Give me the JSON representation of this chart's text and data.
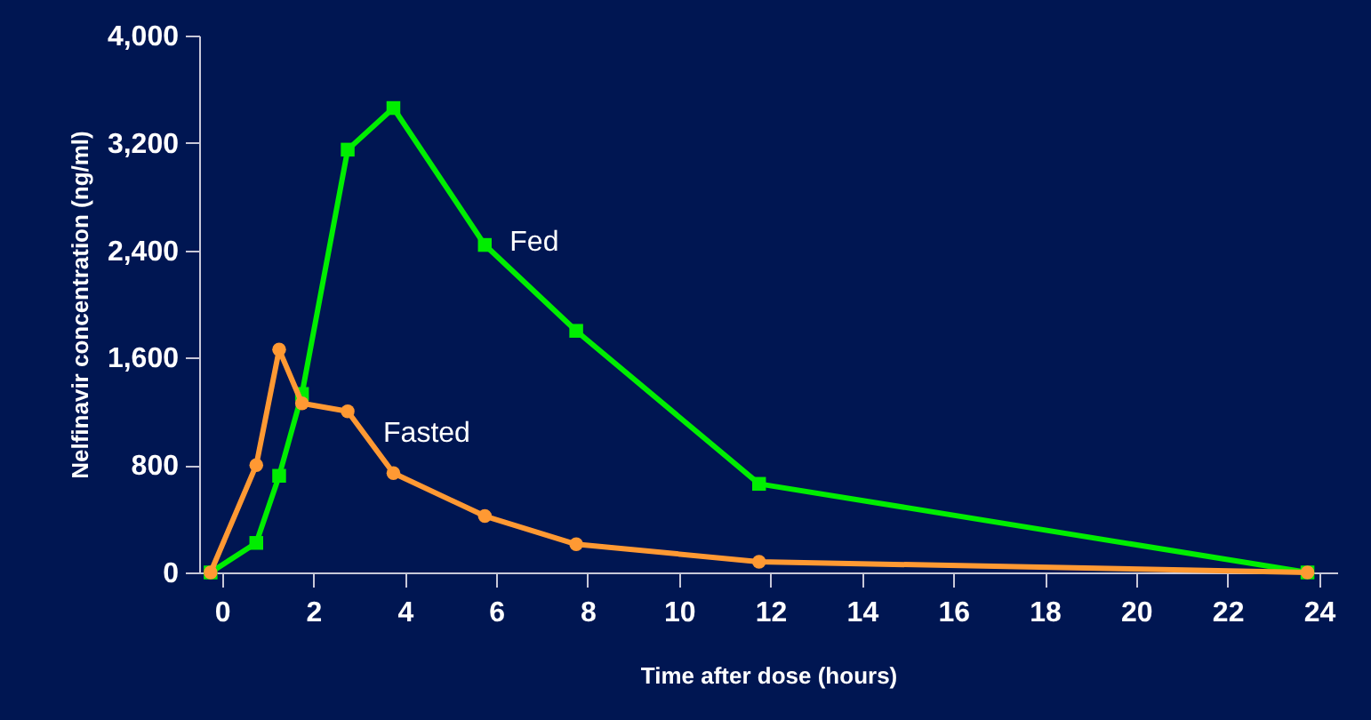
{
  "chart_data": {
    "type": "line",
    "xlabel": "Time after dose (hours)",
    "ylabel": "Nelfinavir concentration (ng/ml)",
    "xlim": [
      -0.5,
      24.4
    ],
    "xticks": [
      0,
      2,
      4,
      6,
      8,
      10,
      12,
      14,
      16,
      18,
      20,
      22,
      24
    ],
    "ylim": [
      0,
      4000
    ],
    "yticks": [
      {
        "value": 0,
        "label": "0"
      },
      {
        "value": 800,
        "label": "800"
      },
      {
        "value": 1600,
        "label": "1,600"
      },
      {
        "value": 2400,
        "label": "2,400"
      },
      {
        "value": 3200,
        "label": "3,200"
      },
      {
        "value": 4000,
        "label": "4,000"
      }
    ],
    "grid": false,
    "series": [
      {
        "name": "Fed",
        "color": "#00ee00",
        "marker": "square",
        "x": [
          -0.25,
          0.75,
          1.25,
          1.75,
          2.75,
          3.75,
          5.75,
          7.75,
          11.75,
          23.75
        ],
        "values": [
          0,
          220,
          720,
          1330,
          3150,
          3460,
          2440,
          1800,
          660,
          0
        ]
      },
      {
        "name": "Fasted",
        "color": "#ff9933",
        "marker": "circle",
        "x": [
          -0.25,
          0.75,
          1.25,
          1.75,
          2.75,
          3.75,
          5.75,
          7.75,
          11.75,
          23.75
        ],
        "values": [
          0,
          800,
          1660,
          1260,
          1200,
          740,
          420,
          210,
          80,
          0
        ]
      }
    ]
  }
}
